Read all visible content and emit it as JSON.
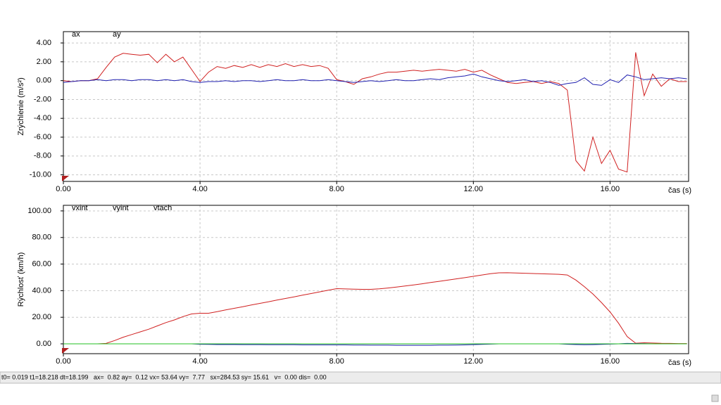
{
  "chart_data": [
    {
      "type": "line",
      "ylabel": "Zrýchlenie (m/s²)",
      "xlabel": "čas (s)",
      "x": [
        0,
        0.25,
        0.5,
        0.75,
        1,
        1.25,
        1.5,
        1.75,
        2,
        2.25,
        2.5,
        2.75,
        3,
        3.25,
        3.5,
        3.75,
        4,
        4.25,
        4.5,
        4.75,
        5,
        5.25,
        5.5,
        5.75,
        6,
        6.25,
        6.5,
        6.75,
        7,
        7.25,
        7.5,
        7.75,
        8,
        8.25,
        8.5,
        8.75,
        9,
        9.25,
        9.5,
        9.75,
        10,
        10.25,
        10.5,
        10.75,
        11,
        11.25,
        11.5,
        11.75,
        12,
        12.25,
        12.5,
        12.75,
        13,
        13.25,
        13.5,
        13.75,
        14,
        14.25,
        14.5,
        14.75,
        15,
        15.25,
        15.5,
        15.75,
        16,
        16.25,
        16.5,
        16.75,
        17,
        17.25,
        17.5,
        17.75,
        18,
        18.25
      ],
      "series": [
        {
          "name": "ax",
          "color": "#d02020",
          "values": [
            0,
            -0.1,
            0,
            0,
            0.2,
            1.4,
            2.5,
            2.9,
            2.8,
            2.7,
            2.8,
            1.9,
            2.8,
            2.0,
            2.5,
            1.2,
            -0.1,
            0.9,
            1.5,
            1.3,
            1.6,
            1.4,
            1.7,
            1.4,
            1.7,
            1.5,
            1.8,
            1.5,
            1.7,
            1.5,
            1.6,
            1.3,
            0.1,
            -0.1,
            -0.4,
            0.2,
            0.4,
            0.7,
            0.9,
            0.9,
            1.0,
            1.1,
            1.0,
            1.1,
            1.2,
            1.1,
            1.0,
            1.2,
            0.9,
            1.1,
            0.6,
            0.2,
            -0.2,
            -0.3,
            -0.2,
            -0.1,
            -0.3,
            -0.1,
            -0.3,
            -1.0,
            -8.5,
            -9.6,
            -6.0,
            -8.8,
            -7.4,
            -9.4,
            -9.7,
            3.0,
            -1.6,
            0.7,
            -0.6,
            0.2,
            -0.1,
            -0.1
          ]
        },
        {
          "name": "ay",
          "color": "#2020b0",
          "values": [
            -0.2,
            -0.1,
            0,
            0,
            0.1,
            0,
            0.1,
            0.1,
            0,
            0.1,
            0.1,
            0,
            0.1,
            0,
            0.1,
            -0.1,
            -0.2,
            -0.1,
            -0.1,
            0,
            -0.1,
            0,
            0,
            -0.1,
            0,
            0.1,
            0,
            0,
            0.1,
            0,
            0,
            0.1,
            0,
            -0.1,
            -0.2,
            -0.1,
            0,
            -0.1,
            0,
            0.1,
            0,
            0,
            0.1,
            0.2,
            0.1,
            0.3,
            0.4,
            0.5,
            0.7,
            0.4,
            0.2,
            0,
            -0.1,
            0,
            0.1,
            -0.1,
            0,
            -0.2,
            -0.5,
            -0.3,
            -0.2,
            0.3,
            -0.4,
            -0.5,
            0.1,
            -0.2,
            0.6,
            0.4,
            0.1,
            0.2,
            0.3,
            0.2,
            0.3,
            0.2
          ]
        }
      ],
      "xlim": [
        0,
        18.3
      ],
      "ylim": [
        -10.7,
        5.2
      ],
      "xticks": [
        {
          "value": 0,
          "label": "0.00"
        },
        {
          "value": 4,
          "label": "4.00"
        },
        {
          "value": 8,
          "label": "8.00"
        },
        {
          "value": 12,
          "label": "12.00"
        },
        {
          "value": 16,
          "label": "16.00"
        }
      ],
      "yticks": [
        {
          "value": 4,
          "label": "4.00"
        },
        {
          "value": 2,
          "label": "2.00"
        },
        {
          "value": 0,
          "label": "0.00"
        },
        {
          "value": -2,
          "label": "-2.00"
        },
        {
          "value": -4,
          "label": "-4.00"
        },
        {
          "value": -6,
          "label": "-6.00"
        },
        {
          "value": -8,
          "label": "-8.00"
        },
        {
          "value": -10,
          "label": "-10.00"
        }
      ],
      "grid": true
    },
    {
      "type": "line",
      "ylabel": "Rýchlosť (km/h)",
      "xlabel": "čas (s)",
      "x": [
        0,
        0.25,
        0.5,
        0.75,
        1,
        1.25,
        1.5,
        1.75,
        2,
        2.25,
        2.5,
        2.75,
        3,
        3.25,
        3.5,
        3.75,
        4,
        4.25,
        4.5,
        4.75,
        5,
        5.25,
        5.5,
        5.75,
        6,
        6.25,
        6.5,
        6.75,
        7,
        7.25,
        7.5,
        7.75,
        8,
        8.25,
        8.5,
        8.75,
        9,
        9.25,
        9.5,
        9.75,
        10,
        10.25,
        10.5,
        10.75,
        11,
        11.25,
        11.5,
        11.75,
        12,
        12.25,
        12.5,
        12.75,
        13,
        13.25,
        13.5,
        13.75,
        14,
        14.25,
        14.5,
        14.75,
        15,
        15.25,
        15.5,
        15.75,
        16,
        16.25,
        16.5,
        16.75,
        17,
        17.25,
        17.5,
        17.75,
        18,
        18.25
      ],
      "series": [
        {
          "name": "vxint",
          "color": "#d02020",
          "values": [
            0,
            0,
            0,
            0,
            0,
            0.3,
            2.5,
            5,
            7,
            9,
            11,
            13.5,
            16,
            18,
            20.5,
            22.5,
            23,
            23,
            24.2,
            25.5,
            26.7,
            27.9,
            29.2,
            30.4,
            31.6,
            32.9,
            34.1,
            35.3,
            36.6,
            37.8,
            39.1,
            40.3,
            41.5,
            41.3,
            41.1,
            41.0,
            41.0,
            41.4,
            42,
            42.7,
            43.5,
            44.3,
            45.2,
            46.1,
            47,
            47.9,
            48.9,
            49.8,
            50.8,
            51.8,
            52.8,
            53.4,
            53.5,
            53.3,
            53.1,
            52.9,
            52.7,
            52.5,
            52.3,
            51.8,
            48,
            43,
            37.5,
            31,
            24,
            15.5,
            5.5,
            0.5,
            0.8,
            0.6,
            0.4,
            0.3,
            0.2,
            0.2
          ]
        },
        {
          "name": "vyint",
          "color": "#2020b0",
          "values": [
            0,
            0,
            0,
            0,
            0,
            0,
            0,
            0,
            0,
            0,
            0,
            0,
            0,
            0,
            0,
            0,
            -0.3,
            -0.4,
            -0.5,
            -0.5,
            -0.5,
            -0.6,
            -0.6,
            -0.6,
            -0.7,
            -0.7,
            -0.7,
            -0.7,
            -0.8,
            -0.8,
            -0.8,
            -0.8,
            -0.8,
            -0.8,
            -0.9,
            -0.9,
            -1.0,
            -1.0,
            -1.0,
            -1.1,
            -1.1,
            -1.1,
            -1.1,
            -1.1,
            -1.0,
            -1.0,
            -0.9,
            -0.8,
            -0.6,
            -0.4,
            -0.2,
            0,
            0,
            0,
            0,
            0,
            0,
            0,
            0,
            -0.3,
            -0.5,
            -0.7,
            -0.6,
            -0.4,
            -0.2,
            0,
            0.3,
            0.2,
            0.1,
            0,
            0,
            0,
            0,
            0
          ]
        },
        {
          "name": "vtach",
          "color": "#20c020",
          "values": [
            0,
            0,
            0,
            0,
            0,
            0,
            0,
            0,
            0,
            0,
            0,
            0,
            0,
            0,
            0,
            0,
            0,
            0,
            0,
            0,
            0,
            0,
            0,
            0,
            0,
            0,
            0,
            0,
            0,
            0,
            0,
            0,
            0,
            0,
            0,
            0,
            0,
            0,
            0,
            0,
            0,
            0,
            0,
            0,
            0,
            0,
            0,
            0,
            0,
            0,
            0,
            0,
            0,
            0,
            0,
            0,
            0,
            0,
            0,
            0,
            0,
            0,
            0,
            0,
            0,
            0,
            0,
            0,
            0,
            0,
            0,
            0,
            0,
            0
          ]
        }
      ],
      "xlim": [
        0,
        18.3
      ],
      "ylim": [
        -7.4,
        104.2
      ],
      "xticks": [
        {
          "value": 0,
          "label": "0.00"
        },
        {
          "value": 4,
          "label": "4.00"
        },
        {
          "value": 8,
          "label": "8.00"
        },
        {
          "value": 12,
          "label": "12.00"
        },
        {
          "value": 16,
          "label": "16.00"
        }
      ],
      "yticks": [
        {
          "value": 100,
          "label": "100.00"
        },
        {
          "value": 80,
          "label": "80.00"
        },
        {
          "value": 60,
          "label": "60.00"
        },
        {
          "value": 40,
          "label": "40.00"
        },
        {
          "value": 20,
          "label": "20.00"
        },
        {
          "value": 0,
          "label": "0.00"
        }
      ],
      "grid": true
    }
  ],
  "status": "t0= 0.019 t1=18.218 dt=18.199   ax=  0.82 ay=  0.12 vx= 53.64 vy=  7.77   sx=284.53 sy= 15.61   v=  0.00 dis=  0.00"
}
